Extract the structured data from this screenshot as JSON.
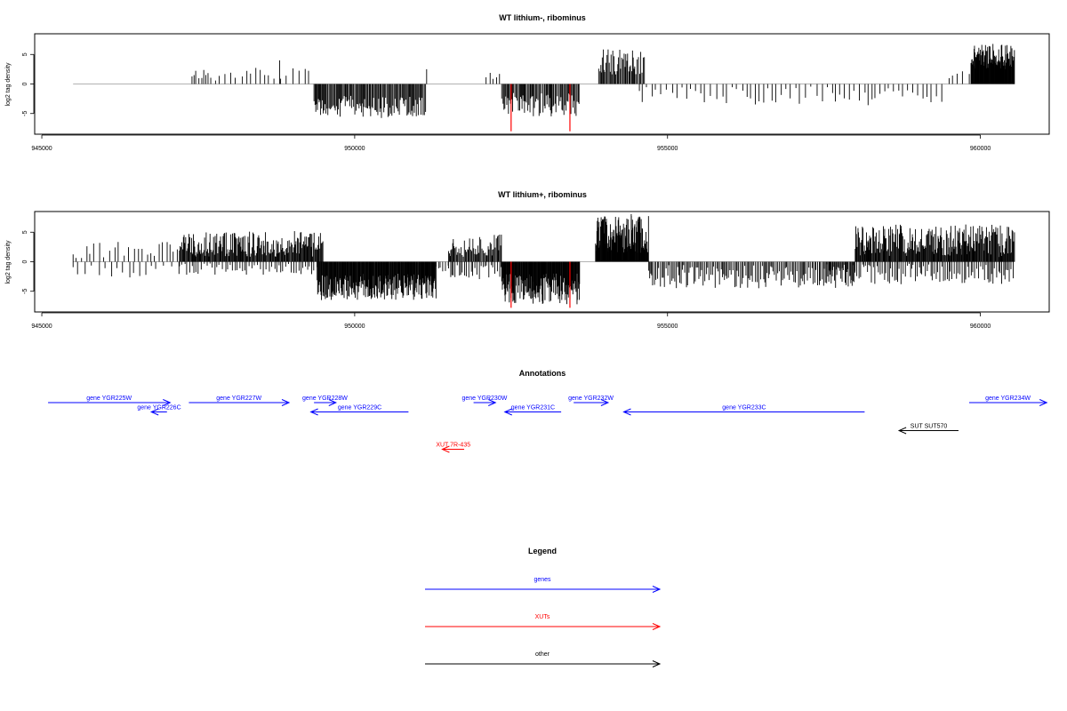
{
  "chart_data": [
    {
      "type": "bar",
      "title": "WT lithium-, ribominus",
      "ylabel": "log2 tag density",
      "xlim": [
        944900,
        961100
      ],
      "ylim": [
        -8.5,
        8.5
      ],
      "x_ticks": [
        945000,
        950000,
        955000,
        960000
      ],
      "y_ticks": [
        -5,
        0,
        5
      ],
      "baseline": [
        945500,
        960550
      ],
      "segments": [
        {
          "from": 947400,
          "to": 947700,
          "sign": 1,
          "min": 0.8,
          "max": 2.8,
          "step": 40,
          "seed": 11
        },
        {
          "from": 947700,
          "to": 949300,
          "sign": 1,
          "min": 0.5,
          "max": 2.8,
          "step": 85,
          "seed": 12
        },
        {
          "from": 948800,
          "to": 948850,
          "sign": 1,
          "min": 4.0,
          "max": 4.0,
          "step": 60,
          "seed": 13
        },
        {
          "from": 949350,
          "to": 951150,
          "sign": -1,
          "min": 2.0,
          "max": 5.8,
          "step": 16,
          "seed": 14
        },
        {
          "from": 951150,
          "to": 951200,
          "sign": 1,
          "min": 2.5,
          "max": 2.5,
          "step": 60,
          "seed": 15
        },
        {
          "from": 952100,
          "to": 952350,
          "sign": 1,
          "min": 0.8,
          "max": 2.2,
          "step": 55,
          "seed": 16
        },
        {
          "from": 952350,
          "to": 953600,
          "sign": -1,
          "min": 1.5,
          "max": 5.5,
          "step": 17,
          "seed": 17
        },
        {
          "from": 953900,
          "to": 954650,
          "sign": 1,
          "min": 1.5,
          "max": 6.0,
          "step": 16,
          "seed": 18
        },
        {
          "from": 954550,
          "to": 959400,
          "sign": -1,
          "min": 0.4,
          "max": 3.6,
          "step": 75,
          "seed": 19
        },
        {
          "from": 959500,
          "to": 959850,
          "sign": 1,
          "min": 0.6,
          "max": 2.2,
          "step": 80,
          "seed": 20
        },
        {
          "from": 959850,
          "to": 960550,
          "sign": 1,
          "min": 2.5,
          "max": 6.8,
          "step": 7,
          "seed": 21
        }
      ],
      "highlights": [
        {
          "x": 952500,
          "value": -8.0
        },
        {
          "x": 953440,
          "value": -8.0
        }
      ]
    },
    {
      "type": "bar",
      "title": "WT lithium+, ribominus",
      "ylabel": "log2 tag density",
      "xlim": [
        944900,
        961100
      ],
      "ylim": [
        -8.5,
        8.5
      ],
      "x_ticks": [
        945000,
        950000,
        955000,
        960000
      ],
      "y_ticks": [
        -5,
        0,
        5
      ],
      "baseline": [
        945500,
        960550
      ],
      "segments": [
        {
          "from": 945500,
          "to": 947200,
          "sign": 1,
          "min": 0.5,
          "max": 3.5,
          "step": 70,
          "seed": 31
        },
        {
          "from": 945500,
          "to": 947200,
          "sign": -1,
          "min": 0.3,
          "max": 2.8,
          "step": 95,
          "seed": 32
        },
        {
          "from": 947200,
          "to": 949500,
          "sign": 1,
          "min": 0.8,
          "max": 5.2,
          "step": 12,
          "seed": 33
        },
        {
          "from": 947200,
          "to": 949500,
          "sign": -1,
          "min": 0.3,
          "max": 2.2,
          "step": 40,
          "seed": 34
        },
        {
          "from": 949400,
          "to": 951300,
          "sign": -1,
          "min": 2.0,
          "max": 6.5,
          "step": 9,
          "seed": 35
        },
        {
          "from": 951300,
          "to": 951500,
          "sign": -1,
          "min": 0.5,
          "max": 1.8,
          "step": 40,
          "seed": 36
        },
        {
          "from": 951500,
          "to": 952350,
          "sign": 1,
          "min": 0.8,
          "max": 4.8,
          "step": 14,
          "seed": 37
        },
        {
          "from": 951500,
          "to": 952350,
          "sign": -1,
          "min": 0.5,
          "max": 3.0,
          "step": 30,
          "seed": 38
        },
        {
          "from": 952350,
          "to": 953600,
          "sign": -1,
          "min": 2.0,
          "max": 7.2,
          "step": 8,
          "seed": 39
        },
        {
          "from": 953850,
          "to": 954700,
          "sign": 1,
          "min": 1.5,
          "max": 7.8,
          "step": 7,
          "seed": 40
        },
        {
          "from": 954350,
          "to": 954450,
          "sign": 1,
          "min": 7.0,
          "max": 8.2,
          "step": 50,
          "seed": 41
        },
        {
          "from": 954700,
          "to": 958000,
          "sign": -1,
          "min": 0.5,
          "max": 4.5,
          "step": 22,
          "seed": 42
        },
        {
          "from": 957500,
          "to": 960550,
          "sign": -1,
          "min": 0.3,
          "max": 3.8,
          "step": 28,
          "seed": 43
        },
        {
          "from": 958000,
          "to": 960550,
          "sign": 1,
          "min": 0.8,
          "max": 6.3,
          "step": 11,
          "seed": 44
        }
      ],
      "highlights": [
        {
          "x": 952500,
          "value": -7.8
        },
        {
          "x": 953440,
          "value": -7.8
        }
      ]
    }
  ],
  "annotations": {
    "title": "Annotations",
    "xlim": [
      944900,
      961100
    ],
    "items": [
      {
        "label": "gene YGR225W",
        "start": 945100,
        "end": 947050,
        "dir": "right",
        "row": 0,
        "color": "#0000ff"
      },
      {
        "label": "gene YGR226C",
        "start": 946750,
        "end": 947000,
        "dir": "left",
        "row": 1,
        "color": "#0000ff"
      },
      {
        "label": "gene YGR227W",
        "start": 947350,
        "end": 948950,
        "dir": "right",
        "row": 0,
        "color": "#0000ff"
      },
      {
        "label": "gene YGR228W",
        "start": 949350,
        "end": 949700,
        "dir": "right",
        "row": 0,
        "color": "#0000ff"
      },
      {
        "label": "gene YGR229C",
        "start": 949300,
        "end": 950860,
        "dir": "left",
        "row": 1,
        "color": "#0000ff"
      },
      {
        "label": "gene YGR230W",
        "start": 951900,
        "end": 952250,
        "dir": "right",
        "row": 0,
        "color": "#0000ff"
      },
      {
        "label": "gene YGR231C",
        "start": 952400,
        "end": 953300,
        "dir": "left",
        "row": 1,
        "color": "#0000ff"
      },
      {
        "label": "gene YGR232W",
        "start": 953500,
        "end": 954050,
        "dir": "right",
        "row": 0,
        "color": "#0000ff"
      },
      {
        "label": "gene YGR233C",
        "start": 954300,
        "end": 958150,
        "dir": "left",
        "row": 1,
        "color": "#0000ff"
      },
      {
        "label": "gene YGR234W",
        "start": 959820,
        "end": 961060,
        "dir": "right",
        "row": 0,
        "color": "#0000ff"
      },
      {
        "label": "SUT SUT570",
        "start": 958700,
        "end": 959650,
        "dir": "left",
        "row": 3,
        "color": "#000000"
      },
      {
        "label": "XUT 7R-435",
        "start": 951400,
        "end": 951750,
        "dir": "left",
        "row": 5,
        "color": "#ff0000"
      }
    ]
  },
  "legend": {
    "title": "Legend",
    "entries": [
      {
        "label": "genes",
        "color": "#0000ff"
      },
      {
        "label": "XUTs",
        "color": "#ff0000"
      },
      {
        "label": "other",
        "color": "#000000"
      }
    ]
  }
}
